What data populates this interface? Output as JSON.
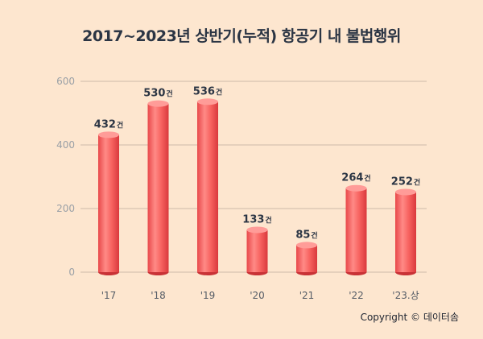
{
  "chart_data": {
    "type": "bar",
    "title": "2017~2023년 상반기(누적) 항공기 내 불법행위",
    "categories": [
      "'17",
      "'18",
      "'19",
      "'20",
      "'21",
      "'22",
      "'23.상"
    ],
    "values": [
      432,
      530,
      536,
      133,
      85,
      264,
      252
    ],
    "value_unit": "건",
    "ylim": [
      0,
      600
    ],
    "yticks": [
      0,
      200,
      400,
      600
    ],
    "grid": true,
    "legend": "none",
    "bar_color": "#f25f5c"
  },
  "footer": {
    "copyright": "Copyright © 데이터솜"
  }
}
